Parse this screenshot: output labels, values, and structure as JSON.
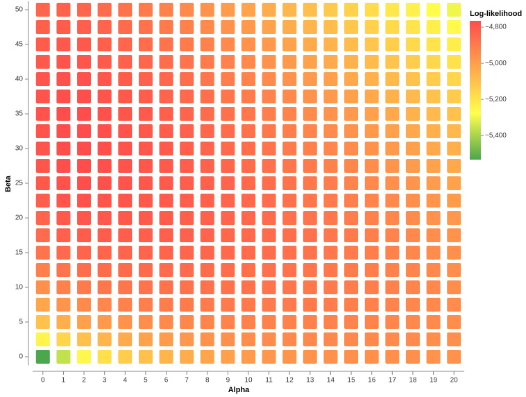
{
  "chart_data": {
    "type": "heatmap",
    "x_label": "Alpha",
    "y_label": "Beta",
    "legend_title": "Log-likelihood",
    "x": [
      0,
      1,
      2,
      3,
      4,
      5,
      6,
      7,
      8,
      9,
      10,
      11,
      12,
      13,
      14,
      15,
      16,
      17,
      18,
      19,
      20
    ],
    "y": [
      0,
      2.5,
      5,
      7.5,
      10,
      12.5,
      15,
      17.5,
      20,
      22.5,
      25,
      27.5,
      30,
      32.5,
      35,
      37.5,
      40,
      42.5,
      45,
      47.5,
      50
    ],
    "ylim": [
      -1.25,
      51.25
    ],
    "yticks": [
      0,
      5,
      10,
      15,
      20,
      25,
      30,
      35,
      40,
      45,
      50
    ],
    "colors": [
      "#4ca64c",
      "#ffff4c",
      "#ffa64c",
      "#ff4c4c"
    ],
    "legend_ticks": [
      {
        "value": -4800,
        "label": "−4,800"
      },
      {
        "value": -5000,
        "label": "−5,000"
      },
      {
        "value": -5200,
        "label": "−5,200"
      },
      {
        "value": -5400,
        "label": "−5,400"
      }
    ],
    "values": [
      [
        -5534,
        -5243,
        -5103,
        -5018,
        -4958,
        -4914,
        -4880,
        -4853,
        -4832,
        -4816,
        -4803,
        -4794,
        -4788,
        -4785,
        -4785,
        -4787,
        -4792,
        -4800,
        -4810,
        -4822,
        -4837
      ],
      [
        -5364,
        -5156,
        -5044,
        -4971,
        -4919,
        -4880,
        -4849,
        -4825,
        -4806,
        -4792,
        -4781,
        -4774,
        -4769,
        -4768,
        -4769,
        -4773,
        -4779,
        -4788,
        -4799,
        -4813,
        -4828
      ],
      [
        -5255,
        -5098,
        -5005,
        -4943,
        -4897,
        -4862,
        -4834,
        -4812,
        -4796,
        -4783,
        -4774,
        -4768,
        -4765,
        -4765,
        -4768,
        -4773,
        -4781,
        -4791,
        -4803,
        -4818,
        -4835
      ],
      [
        -5186,
        -5062,
        -4984,
        -4930,
        -4889,
        -4857,
        -4833,
        -4814,
        -4799,
        -4788,
        -4780,
        -4776,
        -4775,
        -4776,
        -4780,
        -4787,
        -4796,
        -4807,
        -4821,
        -4837,
        -4855
      ],
      [
        -5135,
        -5034,
        -4967,
        -4919,
        -4883,
        -4855,
        -4833,
        -4816,
        -4803,
        -4794,
        -4788,
        -4785,
        -4785,
        -4788,
        -4793,
        -4801,
        -4811,
        -4824,
        -4839,
        -4856,
        -4876
      ],
      [
        -5095,
        -5011,
        -4953,
        -4911,
        -4879,
        -4853,
        -4834,
        -4819,
        -4808,
        -4801,
        -4796,
        -4795,
        -4796,
        -4801,
        -4807,
        -4816,
        -4828,
        -4842,
        -4858,
        -4877,
        -4898
      ],
      [
        -5064,
        -4993,
        -4942,
        -4905,
        -4876,
        -4853,
        -4836,
        -4823,
        -4814,
        -4808,
        -4805,
        -4806,
        -4808,
        -4814,
        -4822,
        -4832,
        -4845,
        -4860,
        -4878,
        -4898,
        -4920
      ],
      [
        -5039,
        -4978,
        -4933,
        -4900,
        -4874,
        -4854,
        -4839,
        -4828,
        -4821,
        -4816,
        -4815,
        -4817,
        -4821,
        -4828,
        -4837,
        -4849,
        -4863,
        -4879,
        -4898,
        -4919,
        -4943
      ],
      [
        -5019,
        -4966,
        -4927,
        -4897,
        -4874,
        -4856,
        -4843,
        -4834,
        -4828,
        -4826,
        -4826,
        -4829,
        -4834,
        -4843,
        -4853,
        -4866,
        -4882,
        -4899,
        -4919,
        -4942,
        -4966
      ],
      [
        -5003,
        -4957,
        -4922,
        -4895,
        -4875,
        -4859,
        -4848,
        -4841,
        -4837,
        -4835,
        -4837,
        -4842,
        -4849,
        -4858,
        -4870,
        -4884,
        -4901,
        -4920,
        -4941,
        -4965,
        -4990
      ],
      [
        -4990,
        -4949,
        -4918,
        -4895,
        -4877,
        -4864,
        -4854,
        -4848,
        -4846,
        -4846,
        -4849,
        -4855,
        -4863,
        -4874,
        -4887,
        -4903,
        -4921,
        -4941,
        -4964,
        -4988,
        -5015
      ],
      [
        -4980,
        -4944,
        -4916,
        -4895,
        -4880,
        -4869,
        -4861,
        -4857,
        -4856,
        -4858,
        -4862,
        -4869,
        -4879,
        -4891,
        -4906,
        -4922,
        -4942,
        -4963,
        -4987,
        -5013,
        -5041
      ],
      [
        -4972,
        -4940,
        -4916,
        -4897,
        -4884,
        -4875,
        -4869,
        -4866,
        -4867,
        -4870,
        -4876,
        -4884,
        -4895,
        -4909,
        -4924,
        -4942,
        -4963,
        -4986,
        -5010,
        -5038,
        -5067
      ],
      [
        -4966,
        -4938,
        -4916,
        -4900,
        -4889,
        -4881,
        -4877,
        -4876,
        -4878,
        -4883,
        -4890,
        -4900,
        -4912,
        -4927,
        -4944,
        -4963,
        -4985,
        -5009,
        -5035,
        -5063,
        -5094
      ],
      [
        -4962,
        -4937,
        -4918,
        -4904,
        -4895,
        -4889,
        -4887,
        -4887,
        -4890,
        -4896,
        -4905,
        -4916,
        -4930,
        -4946,
        -4964,
        -4985,
        -5008,
        -5033,
        -5060,
        -5090,
        -5121
      ],
      [
        -4959,
        -4937,
        -4921,
        -4909,
        -4902,
        -4898,
        -4897,
        -4899,
        -4903,
        -4911,
        -4921,
        -4933,
        -4948,
        -4965,
        -4985,
        -5007,
        -5031,
        -5057,
        -5086,
        -5117,
        -5149
      ],
      [
        -4958,
        -4939,
        -4925,
        -4915,
        -4910,
        -4907,
        -4908,
        -4911,
        -4917,
        -4926,
        -4937,
        -4951,
        -4967,
        -4986,
        -5007,
        -5030,
        -5055,
        -5083,
        -5112,
        -5144,
        -5178
      ],
      [
        -4958,
        -4942,
        -4930,
        -4922,
        -4918,
        -4917,
        -4919,
        -4924,
        -4932,
        -4942,
        -4955,
        -4970,
        -4987,
        -5007,
        -5029,
        -5053,
        -5080,
        -5108,
        -5139,
        -5173,
        -5208
      ],
      [
        -4960,
        -4946,
        -4936,
        -4930,
        -4928,
        -4928,
        -4932,
        -4938,
        -4947,
        -4958,
        -4972,
        -4989,
        -5007,
        -5028,
        -5052,
        -5077,
        -5105,
        -5135,
        -5167,
        -5202,
        -5238
      ],
      [
        -4963,
        -4951,
        -4943,
        -4939,
        -4938,
        -4940,
        -4945,
        -4953,
        -4963,
        -4976,
        -4991,
        -5009,
        -5029,
        -5051,
        -5075,
        -5102,
        -5131,
        -5162,
        -5196,
        -5231,
        -5269
      ],
      [
        -4967,
        -4957,
        -4951,
        -4948,
        -4949,
        -4953,
        -4959,
        -4968,
        -4980,
        -4994,
        -5010,
        -5029,
        -5050,
        -5074,
        -5100,
        -5128,
        -5158,
        -5190,
        -5225,
        -5262,
        -5300
      ]
    ]
  }
}
